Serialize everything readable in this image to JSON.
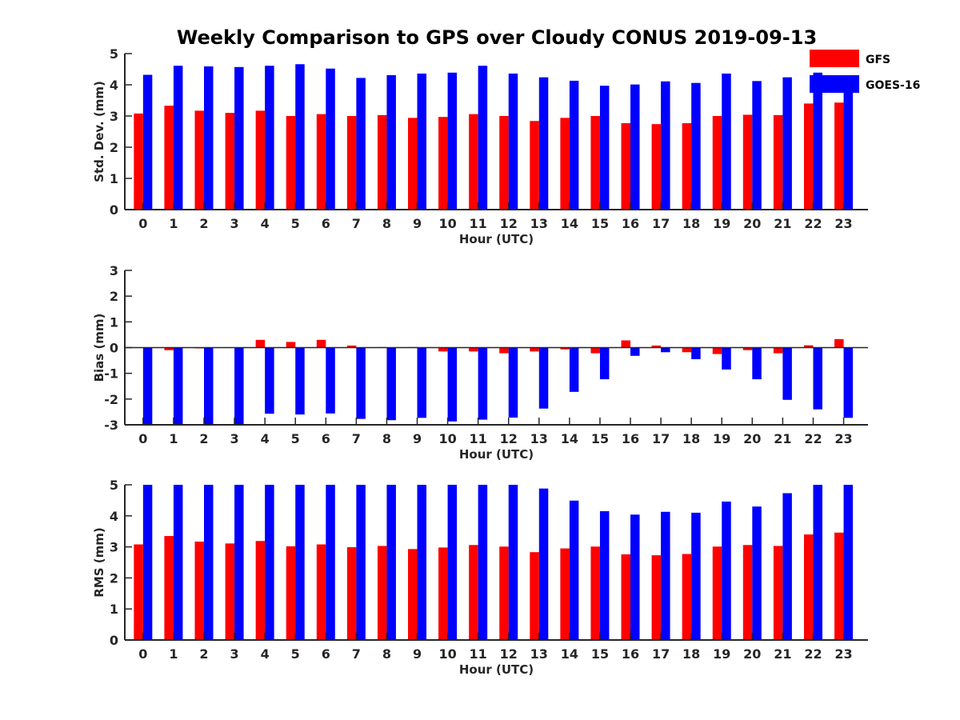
{
  "chart_data": {
    "title": "Weekly Comparison to GPS over Cloudy CONUS 2019-09-13",
    "colors": {
      "GFS": "#ff0000",
      "GOES-16": "#0000ff"
    },
    "legend": {
      "placement": "top-right",
      "entries": [
        "GFS",
        "GOES-16"
      ]
    },
    "categories": [
      "0",
      "1",
      "2",
      "3",
      "4",
      "5",
      "6",
      "7",
      "8",
      "9",
      "10",
      "11",
      "12",
      "13",
      "14",
      "15",
      "16",
      "17",
      "18",
      "19",
      "20",
      "21",
      "22",
      "23"
    ],
    "panels": [
      {
        "type": "bar",
        "ylabel": "Std. Dev. (mm)",
        "xlabel": "Hour (UTC)",
        "ylim": [
          0,
          5
        ],
        "yticks": [
          "0",
          "1",
          "2",
          "3",
          "4",
          "5"
        ],
        "series": [
          {
            "name": "GFS",
            "values": [
              3.08,
              3.33,
              3.17,
              3.1,
              3.17,
              3.0,
              3.06,
              3.0,
              3.03,
              2.94,
              2.97,
              3.06,
              3.0,
              2.84,
              2.94,
              3.0,
              2.77,
              2.74,
              2.77,
              3.0,
              3.04,
              3.03,
              3.4,
              3.43
            ]
          },
          {
            "name": "GOES-16",
            "values": [
              4.32,
              4.61,
              4.59,
              4.57,
              4.61,
              4.66,
              4.52,
              4.22,
              4.31,
              4.36,
              4.39,
              4.61,
              4.36,
              4.24,
              4.13,
              3.97,
              4.01,
              4.11,
              4.06,
              4.36,
              4.12,
              4.24,
              4.39,
              3.9
            ]
          }
        ]
      },
      {
        "type": "bar",
        "ylabel": "Bias (mm)",
        "xlabel": "Hour (UTC)",
        "ylim": [
          -3,
          3
        ],
        "yticks": [
          "-3",
          "-2",
          "-1",
          "0",
          "1",
          "2",
          "3"
        ],
        "series": [
          {
            "name": "GFS",
            "values": [
              0.0,
              -0.1,
              -0.03,
              0.0,
              0.3,
              0.22,
              0.3,
              0.08,
              0.02,
              0.02,
              -0.15,
              -0.15,
              -0.22,
              -0.15,
              -0.07,
              -0.22,
              0.28,
              0.08,
              -0.18,
              -0.25,
              -0.1,
              -0.22,
              0.09,
              0.33
            ]
          },
          {
            "name": "GOES-16",
            "values": [
              -3.0,
              -3.0,
              -3.0,
              -3.0,
              -2.57,
              -2.6,
              -2.56,
              -2.77,
              -2.82,
              -2.73,
              -2.87,
              -2.8,
              -2.72,
              -2.37,
              -1.72,
              -1.23,
              -0.32,
              -0.18,
              -0.45,
              -0.85,
              -1.23,
              -2.03,
              -2.4,
              -2.73
            ]
          }
        ]
      },
      {
        "type": "bar",
        "ylabel": "RMS (mm)",
        "xlabel": "Hour (UTC)",
        "ylim": [
          0,
          5
        ],
        "yticks": [
          "0",
          "1",
          "2",
          "3",
          "4",
          "5"
        ],
        "series": [
          {
            "name": "GFS",
            "values": [
              3.08,
              3.35,
              3.17,
              3.11,
              3.19,
              3.02,
              3.08,
              2.99,
              3.03,
              2.93,
              2.98,
              3.06,
              3.01,
              2.83,
              2.95,
              3.01,
              2.76,
              2.73,
              2.77,
              3.01,
              3.06,
              3.03,
              3.4,
              3.46
            ]
          },
          {
            "name": "GOES-16",
            "values": [
              5.0,
              5.0,
              5.0,
              5.0,
              5.0,
              5.0,
              5.0,
              5.0,
              5.0,
              5.0,
              5.0,
              5.0,
              5.0,
              4.88,
              4.49,
              4.15,
              4.04,
              4.13,
              4.1,
              4.46,
              4.3,
              4.73,
              5.0,
              5.0
            ]
          }
        ]
      }
    ]
  }
}
